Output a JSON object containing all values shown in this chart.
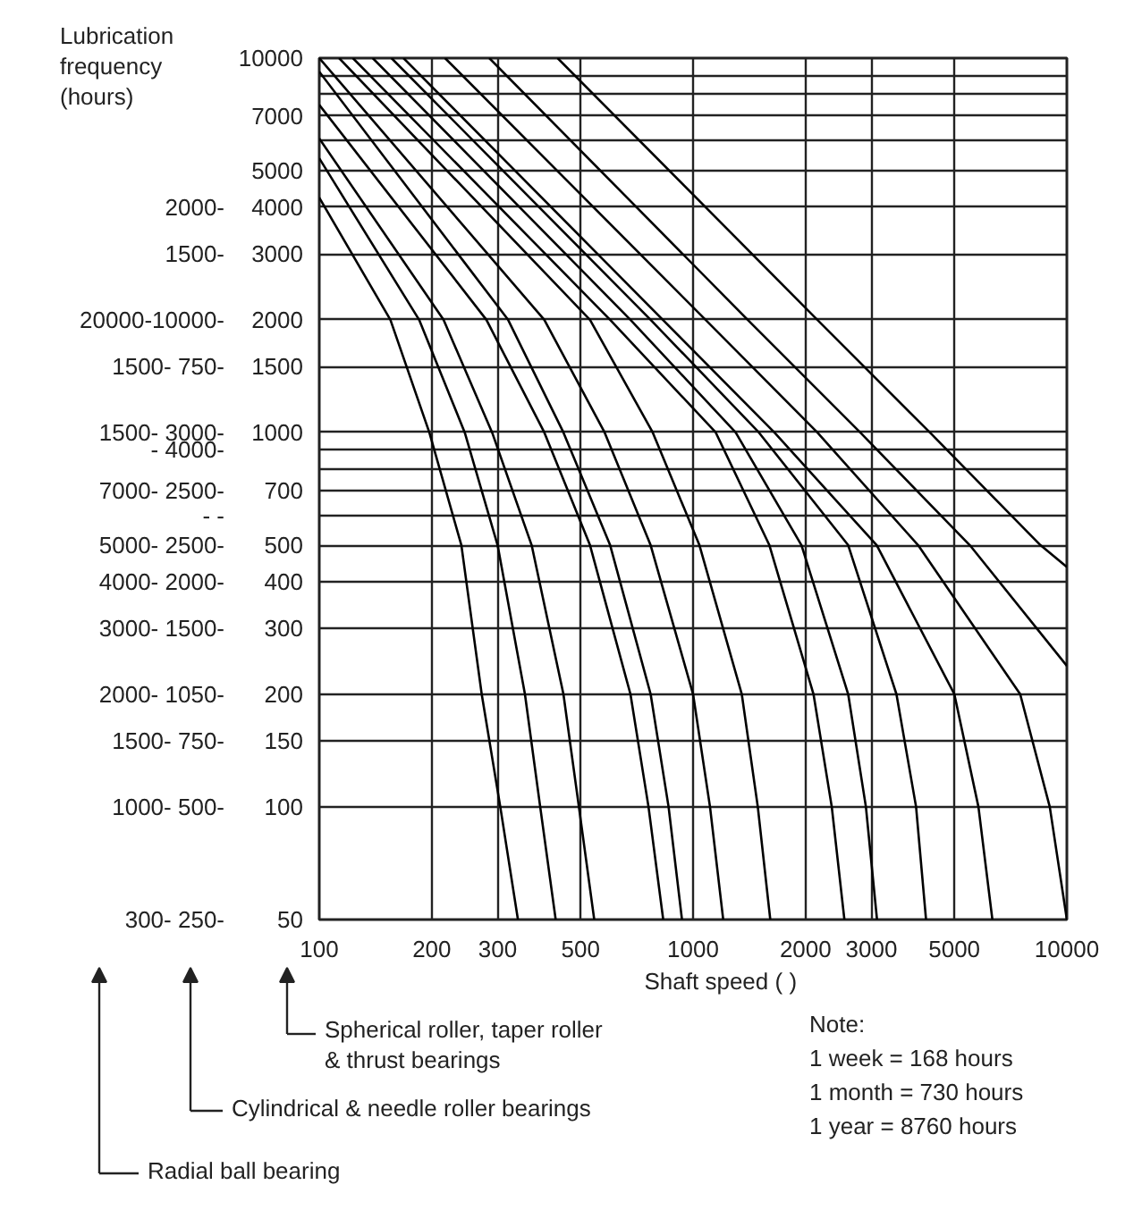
{
  "chart_data": {
    "type": "line",
    "ylabel": "Lubrication frequency (hours)",
    "xlabel": "Shaft speed (   )",
    "annotations": [
      "Spherical roller, taper roller & thrust bearings",
      "Cylindrical & needle roller bearings",
      "Radial ball bearing",
      "Note:",
      "1 week = 168 hours",
      "1 month = 730 hours",
      "1 year = 8760 hours"
    ],
    "y2_categories": [
      null,
      null,
      null,
      null,
      null,
      null,
      "2000-",
      "1500-",
      "20000-10000-",
      "1500- 750-",
      "1500- 3000-",
      "- 4000-",
      null,
      "7000- 2500-",
      "- -",
      "5000- 2500-",
      "4000- 2000-",
      "3000- 1500-",
      "2000- 1050-",
      "1500- 750-",
      "1000- 500-",
      "300- 250-"
    ],
    "log": "xy",
    "grid": true,
    "xlim": [
      100,
      10000
    ],
    "xticks": [
      100,
      200,
      300,
      500,
      1000,
      2000,
      3000,
      5000,
      10000
    ],
    "ylim": [
      50,
      10000
    ],
    "yticks": [
      10000,
      {
        "value": 9000,
        "label": null
      },
      {
        "value": 8000,
        "label": null
      },
      7000,
      {
        "value": 6000,
        "label": null
      },
      5000,
      4000,
      3000,
      2000,
      1500,
      1000,
      {
        "value": 900,
        "label": null
      },
      {
        "value": 800,
        "label": null
      },
      700,
      {
        "value": 600,
        "label": null
      },
      500,
      400,
      300,
      200,
      150,
      100,
      50
    ],
    "series": [
      {
        "color": "#000000",
        "x": [
          100,
          155,
          197,
          240,
          272,
          305,
          340
        ],
        "values": [
          4240,
          2000,
          1000,
          500,
          200,
          100,
          50
        ]
      },
      {
        "color": "#000000",
        "x": [
          100,
          185,
          245,
          300,
          355,
          390,
          429
        ],
        "values": [
          5400,
          2000,
          1000,
          500,
          200,
          100,
          50
        ]
      },
      {
        "color": "#000000",
        "x": [
          100,
          215,
          290,
          370,
          450,
          495,
          544
        ],
        "values": [
          6100,
          2000,
          1000,
          500,
          200,
          100,
          50
        ]
      },
      {
        "color": "#000000",
        "x": [
          100,
          280,
          400,
          530,
          680,
          760,
          832
        ],
        "values": [
          7500,
          2000,
          1000,
          500,
          200,
          100,
          50
        ]
      },
      {
        "color": "#000000",
        "x": [
          100,
          320,
          450,
          600,
          770,
          860,
          934
        ],
        "values": [
          9200,
          2000,
          1000,
          500,
          200,
          100,
          50
        ]
      },
      {
        "color": "#000000",
        "x": [
          100,
          400,
          580,
          770,
          1000,
          1110,
          1204
        ],
        "values": [
          10000,
          2000,
          1000,
          500,
          200,
          100,
          50
        ]
      },
      {
        "color": "#000000",
        "x": [
          113,
          530,
          780,
          1040,
          1350,
          1490,
          1609
        ],
        "values": [
          10000,
          2000,
          1000,
          500,
          200,
          100,
          50
        ]
      },
      {
        "color": "#000000",
        "x": [
          123,
          600,
          1150,
          1600,
          2100,
          2350,
          2540
        ],
        "values": [
          10000,
          2000,
          1000,
          500,
          200,
          100,
          50
        ]
      },
      {
        "color": "#000000",
        "x": [
          139,
          680,
          1300,
          1950,
          2600,
          2900,
          3105
        ],
        "values": [
          10000,
          2000,
          1000,
          500,
          200,
          100,
          50
        ]
      },
      {
        "color": "#000000",
        "x": [
          156,
          770,
          1500,
          2600,
          3500,
          3950,
          4200
        ],
        "values": [
          10000,
          2000,
          1000,
          500,
          200,
          100,
          50
        ]
      },
      {
        "color": "#000000",
        "x": [
          168,
          830,
          1650,
          3100,
          5000,
          5800,
          6320
        ],
        "values": [
          10000,
          2000,
          1000,
          500,
          200,
          100,
          50
        ]
      },
      {
        "color": "#000000",
        "x": [
          217,
          1080,
          2150,
          4000,
          7500,
          9000,
          10000
        ],
        "values": [
          10000,
          2000,
          1000,
          500,
          200,
          100,
          50
        ]
      },
      {
        "color": "#000000",
        "x": [
          285,
          1400,
          2800,
          5500,
          10000
        ],
        "values": [
          10000,
          2000,
          1000,
          500,
          238
        ]
      },
      {
        "color": "#000000",
        "x": [
          434,
          2150,
          4300,
          8500,
          10000
        ],
        "values": [
          10000,
          2000,
          1000,
          500,
          437
        ]
      }
    ]
  }
}
